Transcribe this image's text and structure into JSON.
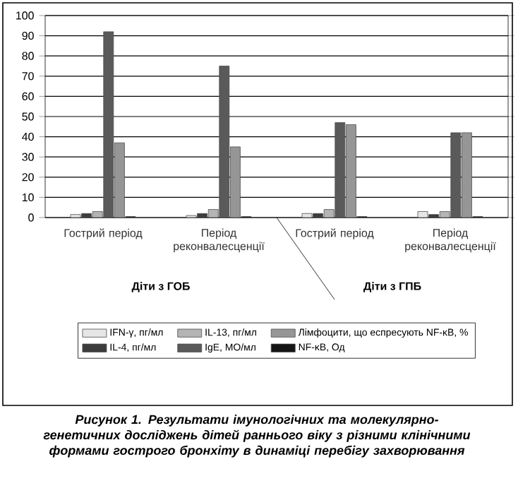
{
  "chart_data": {
    "type": "bar",
    "title": "Рисунок 1. Результати імунологічних та молекулярно-генетичних досліджень дітей раннього віку з різними клінічними формами гострого бронхіту в динаміці перебігу захворювання",
    "categories": [
      "Гострий період",
      "Період реконвалесценції",
      "Гострий період",
      "Період реконвалесценції"
    ],
    "annotations": [
      "Діти з ГОБ",
      "Діти з ГПБ"
    ],
    "series": [
      {
        "name": "IFN-γ, пг/мл",
        "color": "#e6e6e6",
        "values": [
          1.5,
          1,
          2,
          3
        ]
      },
      {
        "name": "IL-4, пг/мл",
        "color": "#3c3c3c",
        "values": [
          2,
          2,
          2,
          1.5
        ]
      },
      {
        "name": "IL-13, пг/мл",
        "color": "#b4b4b4",
        "values": [
          3,
          4,
          4,
          3
        ]
      },
      {
        "name": "IgE, МО/мл",
        "color": "#5a5a5a",
        "values": [
          92,
          75,
          47,
          42
        ]
      },
      {
        "name": "Лімфоцити, що еспресують NF-κB, %",
        "color": "#969696",
        "values": [
          37,
          35,
          46,
          42
        ]
      },
      {
        "name": "NF-κB, Од",
        "color": "#141414",
        "values": [
          0.5,
          0.5,
          0.5,
          0.5
        ]
      }
    ],
    "ylim": [
      0,
      100
    ],
    "yticks": [
      0,
      10,
      20,
      30,
      40,
      50,
      60,
      70,
      80,
      90,
      100
    ],
    "grid": "y",
    "legend": "bottom"
  }
}
